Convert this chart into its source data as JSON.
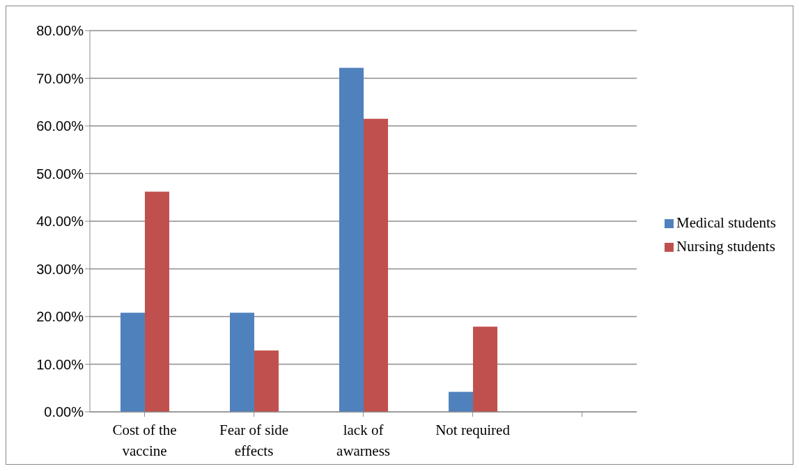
{
  "chart_data": {
    "type": "bar",
    "categories": [
      "Cost of the vaccine",
      "Fear of side effects",
      "lack of awarness",
      "Not required",
      null
    ],
    "series": [
      {
        "name": "Medical students",
        "color": "#4f81bd",
        "values": [
          20.8,
          20.8,
          72.2,
          4.2,
          null
        ]
      },
      {
        "name": "Nursing students",
        "color": "#c0504d",
        "values": [
          46.2,
          12.9,
          61.5,
          17.9,
          null
        ]
      }
    ],
    "ylim": [
      0,
      80
    ],
    "yticks": [
      {
        "value": 0,
        "label": "0.00%"
      },
      {
        "value": 10,
        "label": "10.00%"
      },
      {
        "value": 20,
        "label": "20.00%"
      },
      {
        "value": 30,
        "label": "30.00%"
      },
      {
        "value": 40,
        "label": "40.00%"
      },
      {
        "value": 50,
        "label": "50.00%"
      },
      {
        "value": 60,
        "label": "60.00%"
      },
      {
        "value": 70,
        "label": "70.00%"
      },
      {
        "value": 80,
        "label": "80.00%"
      }
    ],
    "grid": "y",
    "legend": "right"
  }
}
